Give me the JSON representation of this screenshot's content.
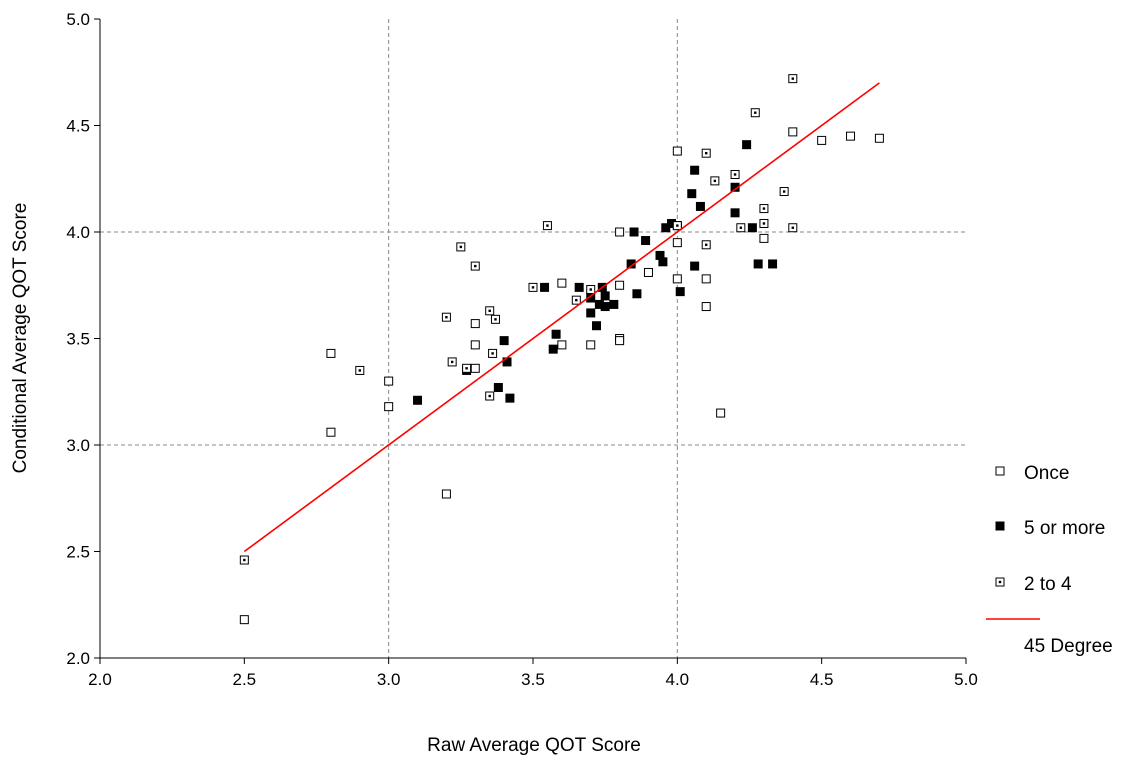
{
  "chart_data": {
    "type": "scatter",
    "title": "",
    "xlabel": "Raw Average QOT Score",
    "ylabel": "Conditional Average QOT Score",
    "xlim": [
      2.0,
      5.0
    ],
    "ylim": [
      2.0,
      5.0
    ],
    "xticks": [
      "2.0",
      "2.5",
      "3.0",
      "3.5",
      "4.0",
      "4.5",
      "5.0"
    ],
    "yticks": [
      "2.0",
      "2.5",
      "3.0",
      "3.5",
      "4.0",
      "4.5",
      "5.0"
    ],
    "reference_lines": {
      "x": [
        3.0,
        4.0
      ],
      "y": [
        3.0,
        4.0
      ],
      "style": "dashed",
      "color": "#888888"
    },
    "legend_position": "right",
    "series": [
      {
        "name": "Once",
        "marker": "open-square",
        "color": "#000000",
        "points": [
          [
            2.5,
            2.18
          ],
          [
            2.8,
            3.43
          ],
          [
            2.8,
            3.06
          ],
          [
            3.0,
            3.3
          ],
          [
            3.0,
            3.18
          ],
          [
            3.2,
            2.77
          ],
          [
            3.3,
            3.57
          ],
          [
            3.3,
            3.47
          ],
          [
            3.3,
            3.36
          ],
          [
            3.6,
            3.76
          ],
          [
            3.6,
            3.47
          ],
          [
            3.7,
            3.47
          ],
          [
            3.8,
            4.0
          ],
          [
            3.8,
            3.75
          ],
          [
            3.8,
            3.5
          ],
          [
            3.8,
            3.49
          ],
          [
            3.9,
            3.81
          ],
          [
            4.0,
            4.38
          ],
          [
            4.0,
            3.95
          ],
          [
            4.0,
            3.78
          ],
          [
            4.1,
            3.78
          ],
          [
            4.1,
            3.65
          ],
          [
            4.15,
            3.15
          ],
          [
            4.3,
            3.97
          ],
          [
            4.4,
            4.47
          ],
          [
            4.5,
            4.43
          ],
          [
            4.6,
            4.45
          ],
          [
            4.7,
            4.44
          ]
        ]
      },
      {
        "name": "5 or more",
        "marker": "filled-square",
        "color": "#000000",
        "points": [
          [
            3.1,
            3.21
          ],
          [
            3.27,
            3.35
          ],
          [
            3.38,
            3.27
          ],
          [
            3.4,
            3.49
          ],
          [
            3.41,
            3.39
          ],
          [
            3.42,
            3.22
          ],
          [
            3.54,
            3.74
          ],
          [
            3.57,
            3.45
          ],
          [
            3.58,
            3.52
          ],
          [
            3.66,
            3.74
          ],
          [
            3.7,
            3.69
          ],
          [
            3.7,
            3.62
          ],
          [
            3.72,
            3.56
          ],
          [
            3.73,
            3.66
          ],
          [
            3.74,
            3.74
          ],
          [
            3.75,
            3.7
          ],
          [
            3.75,
            3.65
          ],
          [
            3.78,
            3.66
          ],
          [
            3.84,
            3.85
          ],
          [
            3.85,
            4.0
          ],
          [
            3.86,
            3.71
          ],
          [
            3.89,
            3.96
          ],
          [
            3.94,
            3.89
          ],
          [
            3.95,
            3.86
          ],
          [
            3.96,
            4.02
          ],
          [
            3.98,
            4.04
          ],
          [
            4.0,
            4.03
          ],
          [
            4.01,
            3.72
          ],
          [
            4.05,
            4.18
          ],
          [
            4.06,
            4.29
          ],
          [
            4.06,
            3.84
          ],
          [
            4.08,
            4.12
          ],
          [
            4.2,
            4.21
          ],
          [
            4.2,
            4.09
          ],
          [
            4.24,
            4.41
          ],
          [
            4.26,
            4.02
          ],
          [
            4.28,
            3.85
          ],
          [
            4.33,
            3.85
          ]
        ]
      },
      {
        "name": "2 to 4",
        "marker": "dotted-square",
        "color": "#000000",
        "points": [
          [
            2.5,
            2.46
          ],
          [
            2.9,
            3.35
          ],
          [
            3.2,
            3.6
          ],
          [
            3.22,
            3.39
          ],
          [
            3.25,
            3.93
          ],
          [
            3.27,
            3.36
          ],
          [
            3.3,
            3.84
          ],
          [
            3.35,
            3.63
          ],
          [
            3.35,
            3.23
          ],
          [
            3.36,
            3.43
          ],
          [
            3.37,
            3.59
          ],
          [
            3.5,
            3.74
          ],
          [
            3.55,
            4.03
          ],
          [
            3.65,
            3.68
          ],
          [
            3.7,
            3.73
          ],
          [
            4.0,
            4.03
          ],
          [
            4.1,
            4.37
          ],
          [
            4.1,
            3.94
          ],
          [
            4.13,
            4.24
          ],
          [
            4.2,
            4.27
          ],
          [
            4.22,
            4.02
          ],
          [
            4.27,
            4.56
          ],
          [
            4.3,
            4.11
          ],
          [
            4.3,
            4.04
          ],
          [
            4.37,
            4.19
          ],
          [
            4.4,
            4.72
          ],
          [
            4.4,
            4.02
          ]
        ]
      }
    ],
    "reference_line": {
      "name": "45 Degree",
      "color": "#ff0000",
      "from": [
        2.5,
        2.5
      ],
      "to": [
        4.7,
        4.7
      ]
    }
  }
}
